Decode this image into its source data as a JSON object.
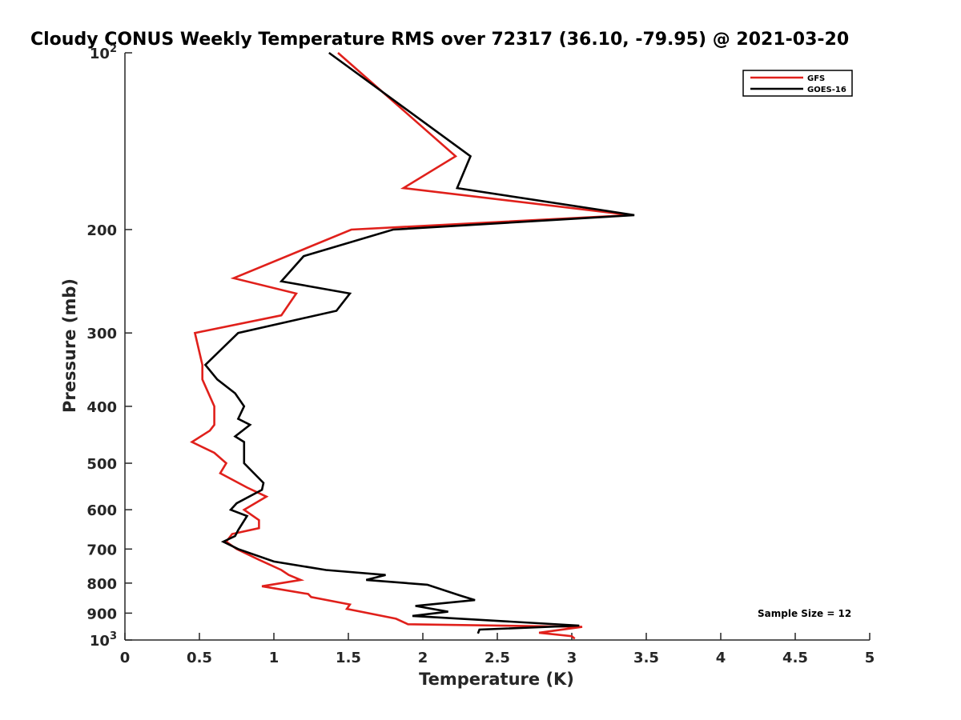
{
  "chart_data": {
    "type": "line",
    "title": "Cloudy CONUS Weekly Temperature RMS over 72317 (36.10, -79.95) @ 2021-03-20",
    "xlabel": "Temperature (K)",
    "ylabel": "Pressure (mb)",
    "xlim": [
      0,
      5
    ],
    "ylim": [
      1000,
      100
    ],
    "y_scale": "log",
    "y_reversed": true,
    "grid": false,
    "legend_position": "top-right",
    "x_ticks": [
      "0",
      "0.5",
      "1",
      "1.5",
      "2",
      "2.5",
      "3",
      "3.5",
      "4",
      "4.5",
      "5"
    ],
    "y_ticks": [
      {
        "value": 100,
        "base": "10",
        "exp": "2"
      },
      {
        "value": 200,
        "label": "200"
      },
      {
        "value": 300,
        "label": "300"
      },
      {
        "value": 400,
        "label": "400"
      },
      {
        "value": 500,
        "label": "500"
      },
      {
        "value": 600,
        "label": "600"
      },
      {
        "value": 700,
        "label": "700"
      },
      {
        "value": 800,
        "label": "800"
      },
      {
        "value": 900,
        "label": "900"
      },
      {
        "value": 1000,
        "base": "10",
        "exp": "3"
      }
    ],
    "annotation": "Sample Size = 12",
    "series": [
      {
        "name": "GFS",
        "color": "#e0201b",
        "points": [
          [
            1.43,
            100
          ],
          [
            2.22,
            150
          ],
          [
            1.87,
            170
          ],
          [
            3.4,
            189
          ],
          [
            1.52,
            200
          ],
          [
            0.73,
            242
          ],
          [
            1.15,
            257
          ],
          [
            1.05,
            280
          ],
          [
            0.47,
            300
          ],
          [
            0.52,
            340
          ],
          [
            0.52,
            360
          ],
          [
            0.6,
            400
          ],
          [
            0.6,
            430
          ],
          [
            0.57,
            440
          ],
          [
            0.45,
            460
          ],
          [
            0.6,
            480
          ],
          [
            0.68,
            500
          ],
          [
            0.64,
            520
          ],
          [
            0.82,
            550
          ],
          [
            0.95,
            570
          ],
          [
            0.8,
            600
          ],
          [
            0.9,
            625
          ],
          [
            0.9,
            645
          ],
          [
            0.72,
            660
          ],
          [
            0.68,
            680
          ],
          [
            0.75,
            700
          ],
          [
            0.9,
            730
          ],
          [
            1.05,
            760
          ],
          [
            1.1,
            775
          ],
          [
            1.18,
            790
          ],
          [
            0.92,
            810
          ],
          [
            1.23,
            835
          ],
          [
            1.25,
            845
          ],
          [
            1.51,
            870
          ],
          [
            1.49,
            885
          ],
          [
            1.82,
            920
          ],
          [
            1.9,
            940
          ],
          [
            3.07,
            950
          ],
          [
            2.78,
            972
          ],
          [
            3.0,
            985
          ],
          [
            3.02,
            995
          ]
        ]
      },
      {
        "name": "GOES-16",
        "color": "#000000",
        "points": [
          [
            1.37,
            100
          ],
          [
            2.32,
            150
          ],
          [
            2.23,
            170
          ],
          [
            3.42,
            189
          ],
          [
            1.8,
            200
          ],
          [
            1.2,
            222
          ],
          [
            1.05,
            245
          ],
          [
            1.51,
            257
          ],
          [
            1.42,
            275
          ],
          [
            0.76,
            300
          ],
          [
            0.54,
            340
          ],
          [
            0.62,
            360
          ],
          [
            0.74,
            380
          ],
          [
            0.8,
            400
          ],
          [
            0.76,
            420
          ],
          [
            0.84,
            430
          ],
          [
            0.74,
            450
          ],
          [
            0.8,
            460
          ],
          [
            0.8,
            500
          ],
          [
            0.93,
            540
          ],
          [
            0.92,
            555
          ],
          [
            0.75,
            585
          ],
          [
            0.71,
            600
          ],
          [
            0.82,
            615
          ],
          [
            0.76,
            650
          ],
          [
            0.74,
            665
          ],
          [
            0.66,
            680
          ],
          [
            0.76,
            700
          ],
          [
            1.0,
            735
          ],
          [
            1.35,
            760
          ],
          [
            1.75,
            775
          ],
          [
            1.62,
            790
          ],
          [
            2.03,
            805
          ],
          [
            2.25,
            840
          ],
          [
            2.35,
            855
          ],
          [
            1.95,
            875
          ],
          [
            2.17,
            895
          ],
          [
            1.93,
            910
          ],
          [
            3.05,
            945
          ],
          [
            2.38,
            960
          ],
          [
            2.37,
            975
          ]
        ]
      }
    ]
  }
}
